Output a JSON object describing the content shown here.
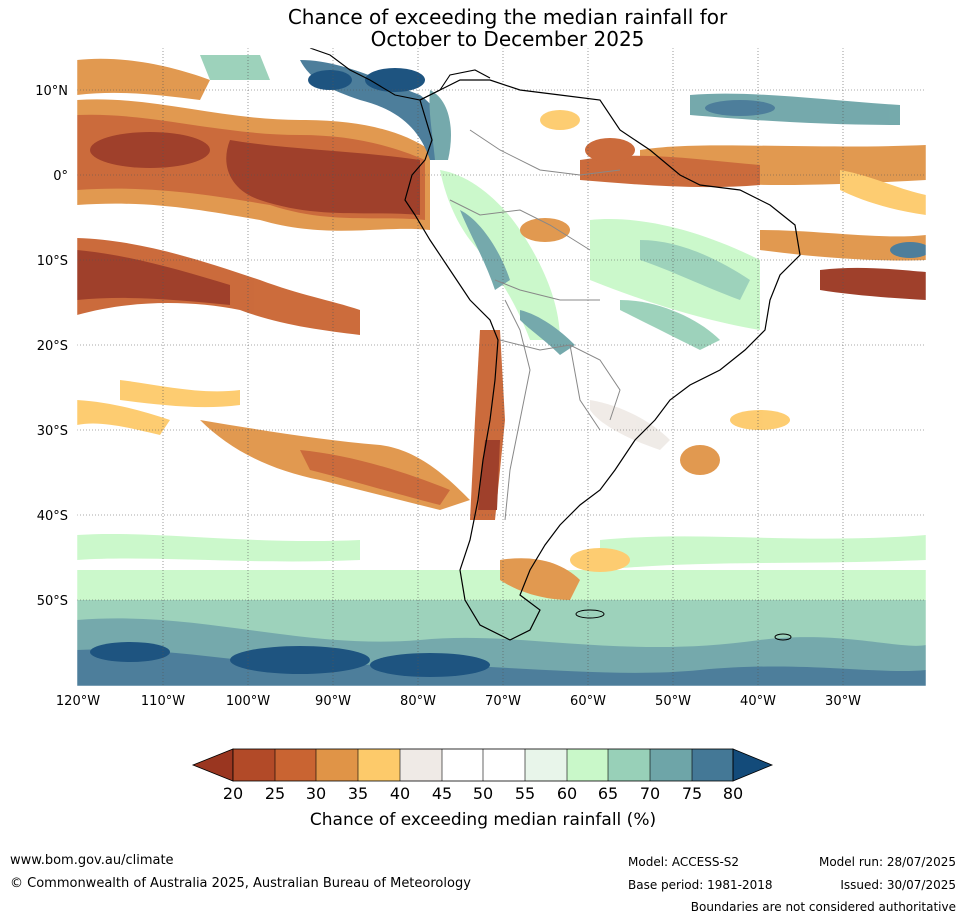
{
  "title_line1": "Chance of exceeding the median rainfall for",
  "title_line2": "October to December 2025",
  "map": {
    "lon_ticks": [
      "120°W",
      "110°W",
      "100°W",
      "90°W",
      "80°W",
      "70°W",
      "60°W",
      "50°W",
      "40°W",
      "30°W"
    ],
    "lat_ticks": [
      "10°N",
      "0°",
      "10°S",
      "20°S",
      "30°S",
      "40°S",
      "50°S"
    ]
  },
  "colorbar": {
    "label": "Chance of exceeding median rainfall (%)",
    "ticks": [
      "20",
      "25",
      "30",
      "35",
      "40",
      "45",
      "50",
      "55",
      "60",
      "65",
      "70",
      "75",
      "80"
    ],
    "colors": [
      "#9a3620",
      "#b24a28",
      "#c96432",
      "#e09447",
      "#fdca6a",
      "#efeae6",
      "#ffffff",
      "#ffffff",
      "#e8f5ea",
      "#c9f8c9",
      "#98d0b8",
      "#6ea5a8",
      "#447896",
      "#134b7a",
      "#a83c20"
    ]
  },
  "footer": {
    "website": "www.bom.gov.au/climate",
    "copyright": "© Commonwealth of Australia 2025, Australian Bureau of Meteorology",
    "model": "Model: ACCESS-S2",
    "base_period": "Base period: 1981-2018",
    "model_run": "Model run: 28/07/2025",
    "issued": "Issued: 30/07/2025",
    "disclaimer": "Boundaries are not considered authoritative"
  }
}
